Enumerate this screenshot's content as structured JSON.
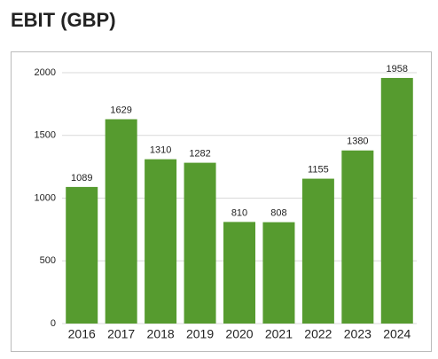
{
  "chart_data": {
    "type": "bar",
    "title": "EBIT (GBP)",
    "categories": [
      "2016",
      "2017",
      "2018",
      "2019",
      "2020",
      "2021",
      "2022",
      "2023",
      "2024"
    ],
    "values": [
      1089,
      1629,
      1310,
      1282,
      810,
      808,
      1155,
      1380,
      1958
    ],
    "color": "#569b2f",
    "ylim": [
      0,
      2000
    ],
    "yticks": [
      0,
      500,
      1000,
      1500,
      2000
    ],
    "grid": true
  }
}
